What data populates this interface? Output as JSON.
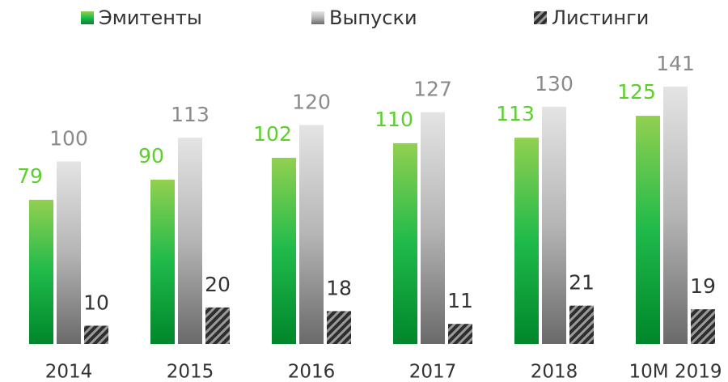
{
  "chart_data": {
    "type": "bar",
    "categories": [
      "2014",
      "2015",
      "2016",
      "2017",
      "2018",
      "10M 2019"
    ],
    "series": [
      {
        "name": "Эмитенты",
        "color": "#5ccf2e",
        "values": [
          79,
          90,
          102,
          110,
          113,
          125
        ]
      },
      {
        "name": "Выпуски",
        "color": "#8a8a8a",
        "values": [
          100,
          113,
          120,
          127,
          130,
          141
        ]
      },
      {
        "name": "Листинги",
        "color": "#333333",
        "values": [
          10,
          20,
          18,
          11,
          21,
          19
        ]
      }
    ]
  }
}
